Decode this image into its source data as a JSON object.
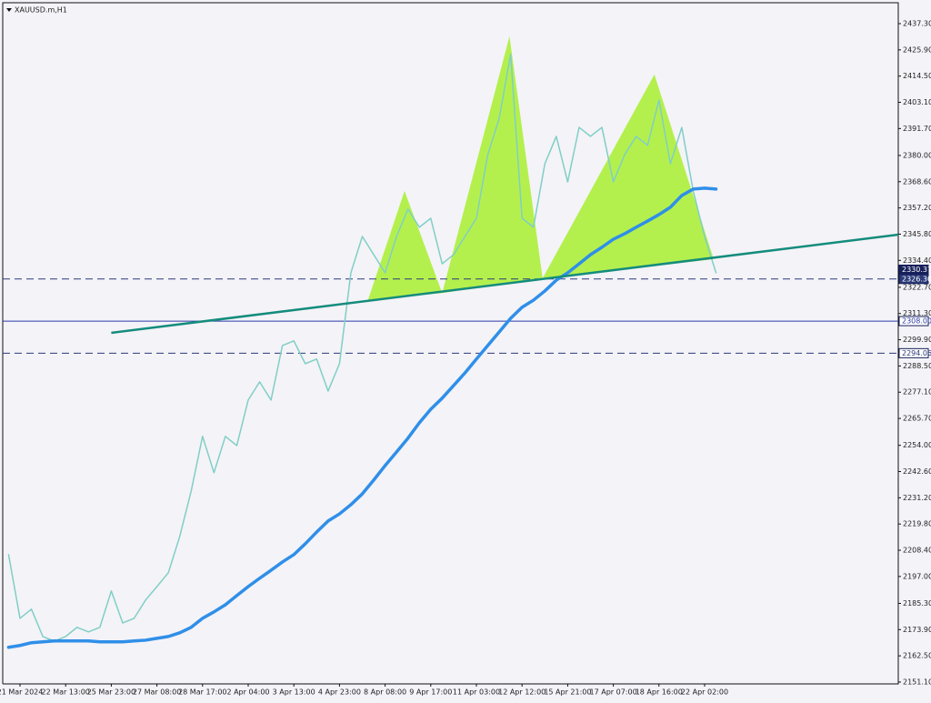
{
  "chart_data": {
    "type": "line",
    "title": "XAUUSD.m,H1",
    "x": [
      null,
      "21 Mar 2024",
      null,
      null,
      null,
      "22 Mar 13:00",
      null,
      null,
      null,
      "25 Mar 23:00",
      null,
      null,
      null,
      "27 Mar 08:00",
      null,
      null,
      null,
      "28 Mar 17:00",
      null,
      null,
      null,
      "2 Apr 04:00",
      null,
      null,
      null,
      "3 Apr 13:00",
      null,
      null,
      null,
      "4 Apr 23:00",
      null,
      null,
      null,
      "8 Apr 08:00",
      null,
      null,
      null,
      "9 Apr 17:00",
      null,
      null,
      null,
      "11 Apr 03:00",
      null,
      null,
      null,
      "12 Apr 12:00",
      null,
      null,
      null,
      "15 Apr 21:00",
      null,
      null,
      null,
      "17 Apr 07:00",
      null,
      null,
      null,
      "18 Apr 16:00",
      null,
      null,
      null,
      "22 Apr 02:00",
      null
    ],
    "series": [
      {
        "color": "#7fcfc6",
        "values": [
          2206.5,
          2178.8,
          2182.8,
          2170.9,
          2168.9,
          2170.9,
          2174.9,
          2172.9,
          2174.9,
          2190.7,
          2176.8,
          2178.8,
          2186.7,
          2192.6,
          2198.6,
          2214.4,
          2234.1,
          2257.9,
          2242.1,
          2257.9,
          2253.9,
          2273.7,
          2281.6,
          2273.7,
          2297.4,
          2299.4,
          2289.5,
          2291.5,
          2277.6,
          2289.5,
          2329.0,
          2344.8,
          2336.9,
          2329.0,
          2344.8,
          2356.7,
          2348.8,
          2352.7,
          2332.9,
          2336.9,
          2344.8,
          2352.7,
          2380.4,
          2396.2,
          2423.9,
          2352.7,
          2348.8,
          2376.4,
          2388.3,
          2368.5,
          2392.2,
          2388.3,
          2392.2,
          2368.5,
          2380.4,
          2388.3,
          2384.4,
          2404.1,
          2376.4,
          2392.2,
          2364.6,
          2344.8,
          2329.0
        ]
      },
      {
        "color": "#2f8fe8",
        "values": [
          2166.2,
          2167.0,
          2168.2,
          2168.6,
          2169.0,
          2169.0,
          2169.0,
          2169.0,
          2168.6,
          2168.6,
          2168.6,
          2169.0,
          2169.3,
          2170.1,
          2170.9,
          2172.5,
          2174.9,
          2178.8,
          2181.6,
          2184.7,
          2188.7,
          2192.6,
          2196.2,
          2199.7,
          2203.3,
          2206.5,
          2211.2,
          2216.3,
          2221.1,
          2224.2,
          2228.2,
          2232.9,
          2238.9,
          2245.2,
          2251.1,
          2257.1,
          2263.8,
          2269.7,
          2274.5,
          2280.0,
          2285.5,
          2291.5,
          2297.4,
          2303.3,
          2309.2,
          2314.0,
          2317.1,
          2321.1,
          2325.8,
          2329.0,
          2332.9,
          2336.9,
          2340.1,
          2343.6,
          2346.0,
          2348.8,
          2351.5,
          2354.3,
          2357.5,
          2362.6,
          2365.4,
          2365.8,
          2365.4
        ]
      }
    ],
    "patterns": [
      {
        "color": "#adf03a",
        "x": [
          31.5,
          34.7,
          38
        ],
        "values": [
          2317.2,
          2364.6,
          2320.2
        ]
      },
      {
        "color": "#adf03a",
        "x": [
          38,
          43.9,
          46.8
        ],
        "values": [
          2320.2,
          2431.8,
          2326.6
        ]
      },
      {
        "color": "#adf03a",
        "x": [
          46.8,
          56.6,
          61.8
        ],
        "values": [
          2326.6,
          2415.2,
          2334.9
        ]
      }
    ],
    "trendline": {
      "color": "#148c7c",
      "x": [
        9,
        62
      ],
      "values": [
        2302.9,
        2335.7
      ],
      "extend_right": true
    },
    "levels": [
      {
        "value": 2326.3,
        "label": "2326.30",
        "style": "dashed",
        "color": "#2a3a78"
      },
      {
        "value": 2308,
        "label": "2308.00",
        "style": "solid",
        "color": "#2a3aa8"
      },
      {
        "value": 2294.06,
        "style": "dashed",
        "color": "#2a3a78"
      }
    ],
    "price_marker": {
      "value": 2330.37,
      "color": "#16205a"
    },
    "ylim": [
      2150.3,
      2445.6
    ],
    "yticks": [
      {
        "value": 2437.3,
        "label": "2437.30"
      },
      {
        "value": 2425.9,
        "label": "2425.90"
      },
      {
        "value": 2414.5,
        "label": "2414.50"
      },
      {
        "value": 2403.1,
        "label": "2403.10"
      },
      {
        "value": 2391.7,
        "label": "2391.70"
      },
      {
        "value": 2380,
        "label": "2380.00"
      },
      {
        "value": 2368.6,
        "label": "2368.60"
      },
      {
        "value": 2357.2,
        "label": "2357.20"
      },
      {
        "value": 2345.8,
        "label": "2345.80"
      },
      {
        "value": 2334.4,
        "label": "2334.40"
      },
      {
        "value": 2322.7,
        "label": "2322.70"
      },
      {
        "value": 2311.3,
        "label": "2311.30"
      },
      {
        "value": 2299.9,
        "label": "2299.90"
      },
      {
        "value": 2288.5,
        "label": "2288.50"
      },
      {
        "value": 2277.1,
        "label": "2277.10"
      },
      {
        "value": 2265.7,
        "label": "2265.70"
      },
      {
        "value": 2254,
        "label": "2254.00"
      },
      {
        "value": 2242.6,
        "label": "2242.60"
      },
      {
        "value": 2231.2,
        "label": "2231.20"
      },
      {
        "value": 2219.8,
        "label": "2219.80"
      },
      {
        "value": 2208.4,
        "label": "2208.40"
      },
      {
        "value": 2197,
        "label": "2197.00"
      },
      {
        "value": 2185.3,
        "label": "2185.30"
      },
      {
        "value": 2173.9,
        "label": "2173.90"
      },
      {
        "value": 2162.5,
        "label": "2162.50"
      },
      {
        "value": 2151.1,
        "label": "2151.10"
      }
    ],
    "grid": false
  }
}
